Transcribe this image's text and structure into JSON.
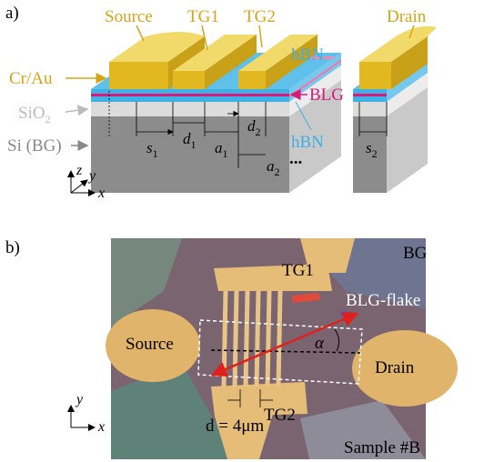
{
  "panel_a": {
    "label": "a)",
    "contacts": [
      "Source",
      "TG1",
      "TG2",
      "Drain"
    ],
    "layers": {
      "metal": "Cr/Au",
      "hbn_top": "hBN",
      "blg": "BLG",
      "sio2": {
        "base": "SiO",
        "sub": "2"
      },
      "si": "Si (BG)",
      "hbn_bottom": "hBN"
    },
    "dimensions": [
      {
        "base": "s",
        "sub": "1"
      },
      {
        "base": "d",
        "sub": "1"
      },
      {
        "base": "a",
        "sub": "1"
      },
      {
        "base": "d",
        "sub": "2"
      },
      {
        "base": "a",
        "sub": "2"
      },
      {
        "base": "s",
        "sub": "2"
      }
    ],
    "ellipsis": "...",
    "axes": {
      "z": "z",
      "y": "y",
      "x": "x"
    }
  },
  "panel_b": {
    "label": "b)",
    "texts": {
      "bg": "BG",
      "tg1": "TG1",
      "flake": "BLG-flake",
      "source": "Source",
      "angle": "α",
      "drain": "Drain",
      "spacing": "d = 4μm",
      "tg2": "TG2",
      "sample": "Sample #B"
    },
    "axes": {
      "y": "y",
      "x": "x"
    }
  }
}
